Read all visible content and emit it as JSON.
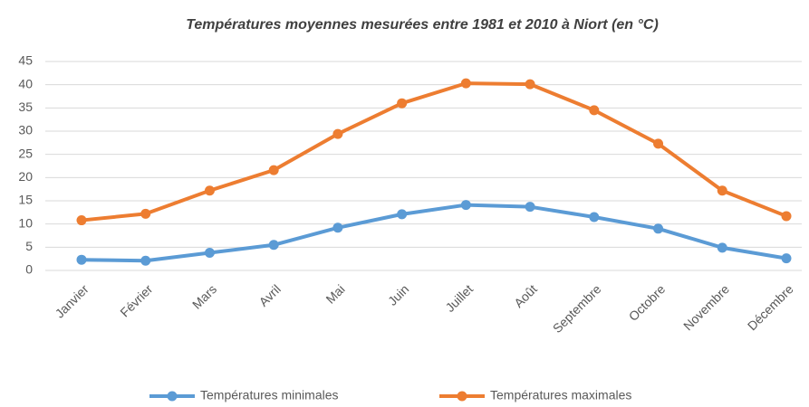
{
  "chart_data": {
    "type": "line",
    "title": "Températures moyennes mesurées entre 1981 et 2010 à Niort (en °C)",
    "categories": [
      "Janvier",
      "Février",
      "Mars",
      "Avril",
      "Mai",
      "Juin",
      "Juillet",
      "Août",
      "Septembre",
      "Octobre",
      "Novembre",
      "Décembre"
    ],
    "series": [
      {
        "name": "Températures minimales",
        "color": "#5b9bd5",
        "values": [
          2.3,
          2.1,
          3.8,
          5.5,
          9.2,
          12.1,
          14.1,
          13.7,
          11.5,
          9.0,
          4.9,
          2.6
        ]
      },
      {
        "name": "Températures maximales",
        "color": "#ed7d31",
        "values": [
          10.8,
          12.2,
          17.2,
          21.6,
          29.4,
          36.0,
          40.3,
          40.1,
          34.5,
          27.3,
          17.2,
          11.7
        ]
      }
    ],
    "ylim": [
      0,
      45
    ],
    "yticks": [
      0,
      5,
      10,
      15,
      20,
      25,
      30,
      35,
      40,
      45
    ],
    "grid": true,
    "legend": "bottom"
  }
}
